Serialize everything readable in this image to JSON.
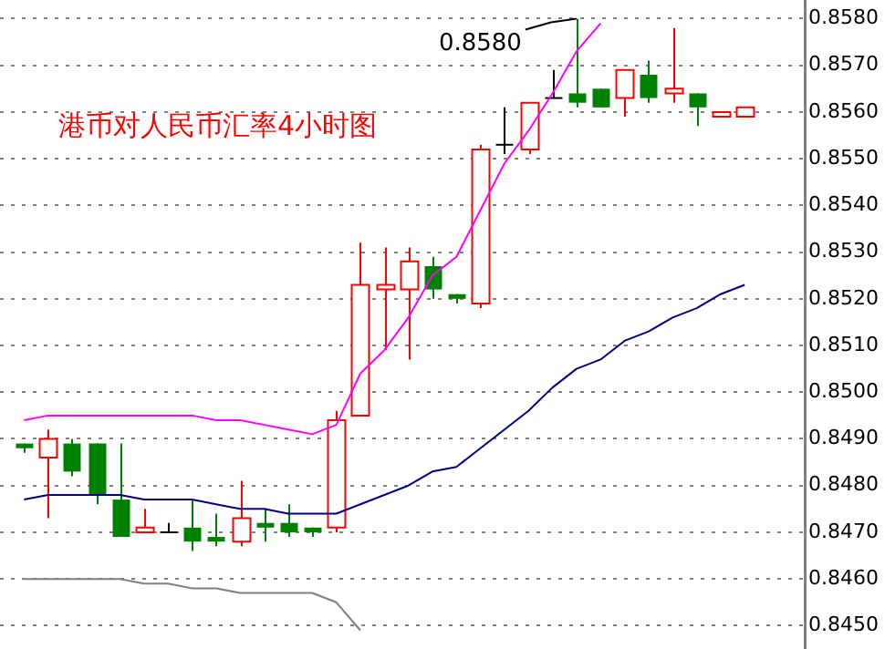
{
  "chart_data": {
    "type": "candlestick",
    "title": "港币对人民币汇率4小时图",
    "categories": [
      null,
      null,
      null,
      null,
      null,
      null,
      null,
      null,
      null,
      null,
      null,
      null,
      null,
      null,
      null,
      null,
      null,
      null,
      null,
      null,
      null,
      null,
      null,
      null,
      null,
      null,
      null,
      null,
      null,
      null,
      null
    ],
    "ohlc": [
      [
        0.8489,
        0.8489,
        0.8487,
        0.8488
      ],
      [
        0.8486,
        0.8492,
        0.8473,
        0.849
      ],
      [
        0.8489,
        0.849,
        0.8482,
        0.8483
      ],
      [
        0.8489,
        0.8489,
        0.8476,
        0.8478
      ],
      [
        0.8477,
        0.8489,
        0.8469,
        0.8469
      ],
      [
        0.847,
        0.8475,
        0.847,
        0.8471
      ],
      [
        0.847,
        0.8472,
        0.847,
        0.847
      ],
      [
        0.8471,
        0.8477,
        0.8466,
        0.8468
      ],
      [
        0.8469,
        0.8474,
        0.8467,
        0.8468
      ],
      [
        0.8468,
        0.8481,
        0.8467,
        0.8473
      ],
      [
        0.8472,
        0.8475,
        0.8468,
        0.8471
      ],
      [
        0.8472,
        0.8476,
        0.8469,
        0.847
      ],
      [
        0.8471,
        0.8471,
        0.8469,
        0.847
      ],
      [
        0.8471,
        0.8496,
        0.847,
        0.8494
      ],
      [
        0.8495,
        0.8532,
        0.8495,
        0.8523
      ],
      [
        0.8522,
        0.8531,
        0.8509,
        0.8523
      ],
      [
        0.8522,
        0.8531,
        0.8507,
        0.8528
      ],
      [
        0.8527,
        0.8529,
        0.852,
        0.8522
      ],
      [
        0.8521,
        0.8521,
        0.8519,
        0.852
      ],
      [
        0.8519,
        0.8553,
        0.8518,
        0.8552
      ],
      [
        0.8553,
        0.8561,
        0.8551,
        0.8553
      ],
      [
        0.8552,
        0.8562,
        0.8551,
        0.8562
      ],
      [
        0.8563,
        0.8569,
        0.8563,
        0.8563
      ],
      [
        0.8564,
        0.858,
        0.8561,
        0.8562
      ],
      [
        0.8565,
        0.8565,
        0.8561,
        0.8561
      ],
      [
        0.8563,
        0.8569,
        0.8559,
        0.8569
      ],
      [
        0.8568,
        0.8571,
        0.8562,
        0.8563
      ],
      [
        0.8564,
        0.8578,
        0.8562,
        0.8565
      ],
      [
        0.8564,
        0.8564,
        0.8557,
        0.8561
      ],
      [
        0.8559,
        0.856,
        0.8559,
        0.856
      ],
      [
        0.8559,
        0.8561,
        0.8559,
        0.8561
      ]
    ],
    "series": [
      {
        "type": "line",
        "color": "#ff00ff",
        "values": [
          0.8494,
          0.8495,
          0.8495,
          0.8495,
          0.8495,
          0.8495,
          0.8495,
          0.8495,
          0.8494,
          0.8494,
          0.8493,
          0.8492,
          0.8491,
          0.8493,
          0.8504,
          0.8509,
          0.8516,
          0.8525,
          0.8529,
          0.8539,
          0.8549,
          0.8556,
          0.8564,
          0.8573,
          0.8579,
          null,
          null,
          null,
          null,
          null,
          null
        ]
      },
      {
        "type": "line",
        "color": "#000080",
        "values": [
          0.8477,
          0.8478,
          0.8478,
          0.8478,
          0.8478,
          0.8477,
          0.8477,
          0.8477,
          0.8476,
          0.8475,
          0.8475,
          0.8474,
          0.8474,
          0.8474,
          0.8476,
          0.8478,
          0.848,
          0.8483,
          0.8484,
          0.8488,
          0.8492,
          0.8496,
          0.8501,
          0.8505,
          0.8507,
          0.8511,
          0.8513,
          0.8516,
          0.8518,
          0.8521,
          0.8523
        ]
      },
      {
        "type": "line",
        "color": "#808080",
        "values": [
          0.846,
          0.846,
          0.846,
          0.846,
          0.846,
          0.8459,
          0.8459,
          0.8458,
          0.8458,
          0.8457,
          0.8457,
          0.8457,
          0.8457,
          0.8455,
          0.8449,
          null,
          null,
          null,
          null,
          null,
          null,
          null,
          null,
          null,
          null,
          null,
          null,
          null,
          null,
          null,
          null
        ]
      }
    ],
    "annotations": [
      "0.8580"
    ],
    "ylim": [
      0.8445,
      0.8584
    ],
    "yticks": [
      {
        "value": 0.845,
        "label": "0.8450"
      },
      {
        "value": 0.846,
        "label": "0.8460"
      },
      {
        "value": 0.847,
        "label": "0.8470"
      },
      {
        "value": 0.848,
        "label": "0.8480"
      },
      {
        "value": 0.849,
        "label": "0.8490"
      },
      {
        "value": 0.85,
        "label": "0.8500"
      },
      {
        "value": 0.851,
        "label": "0.8510"
      },
      {
        "value": 0.852,
        "label": "0.8520"
      },
      {
        "value": 0.853,
        "label": "0.8530"
      },
      {
        "value": 0.854,
        "label": "0.8540"
      },
      {
        "value": 0.855,
        "label": "0.8550"
      },
      {
        "value": 0.856,
        "label": "0.8560"
      },
      {
        "value": 0.857,
        "label": "0.8570"
      },
      {
        "value": 0.858,
        "label": "0.8580"
      }
    ],
    "grid": "y",
    "marker": "none",
    "legend": false
  }
}
